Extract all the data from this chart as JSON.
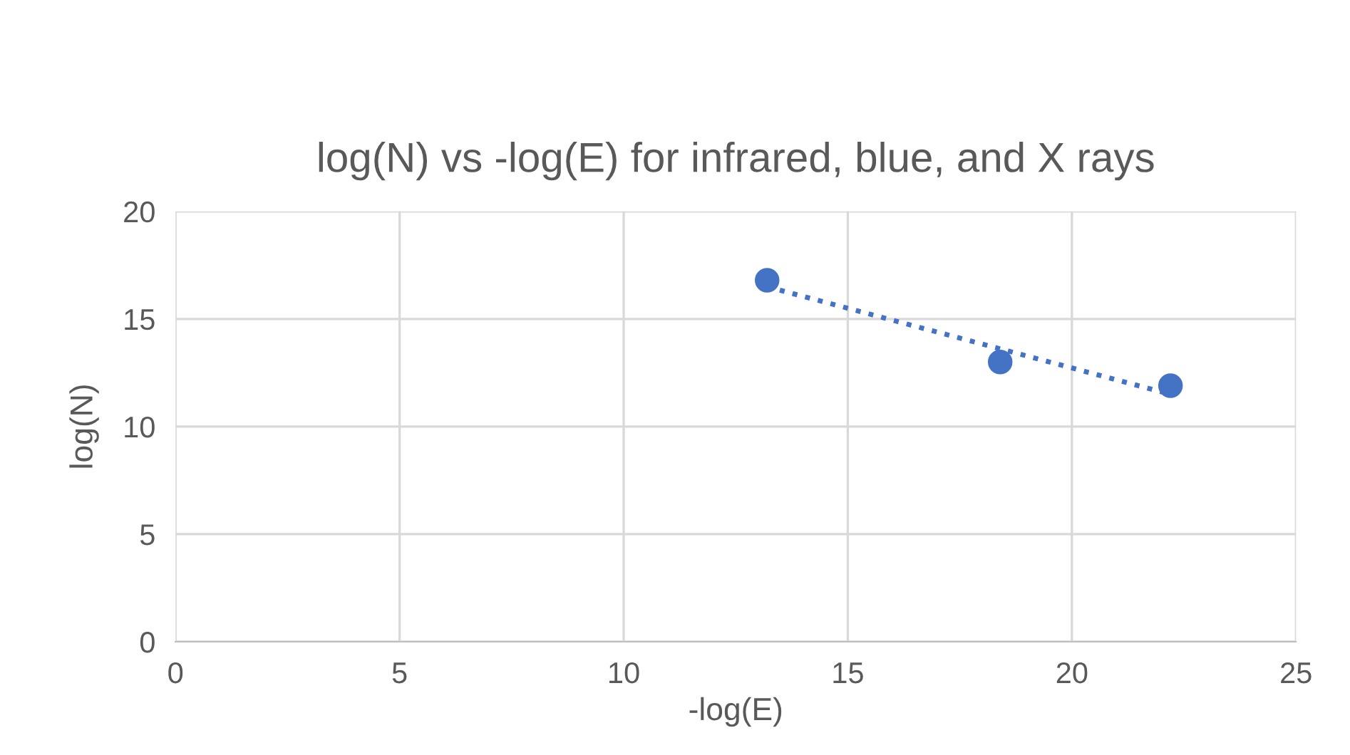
{
  "chart_data": {
    "type": "scatter",
    "title": "log(N) vs -log(E) for infrared, blue, and X rays",
    "xlabel": "-log(E)",
    "ylabel": "log(N)",
    "series": [
      {
        "color": "#4472c4",
        "x": [
          13.2,
          18.4,
          22.2
        ],
        "values": [
          16.8,
          13.0,
          11.9
        ],
        "marker": "circle"
      },
      {
        "type": "line",
        "color": "#4472c4",
        "x": [
          13.2,
          22.2
        ],
        "values": [
          16.5,
          11.5
        ],
        "marker": "none",
        "line_style": "dotted"
      }
    ],
    "xlim": [
      0,
      25
    ],
    "xticks": [
      0,
      5,
      10,
      15,
      20,
      25
    ],
    "ylim": [
      0,
      20
    ],
    "yticks": [
      0,
      5,
      10,
      15,
      20
    ],
    "grid": true,
    "legend": false
  }
}
